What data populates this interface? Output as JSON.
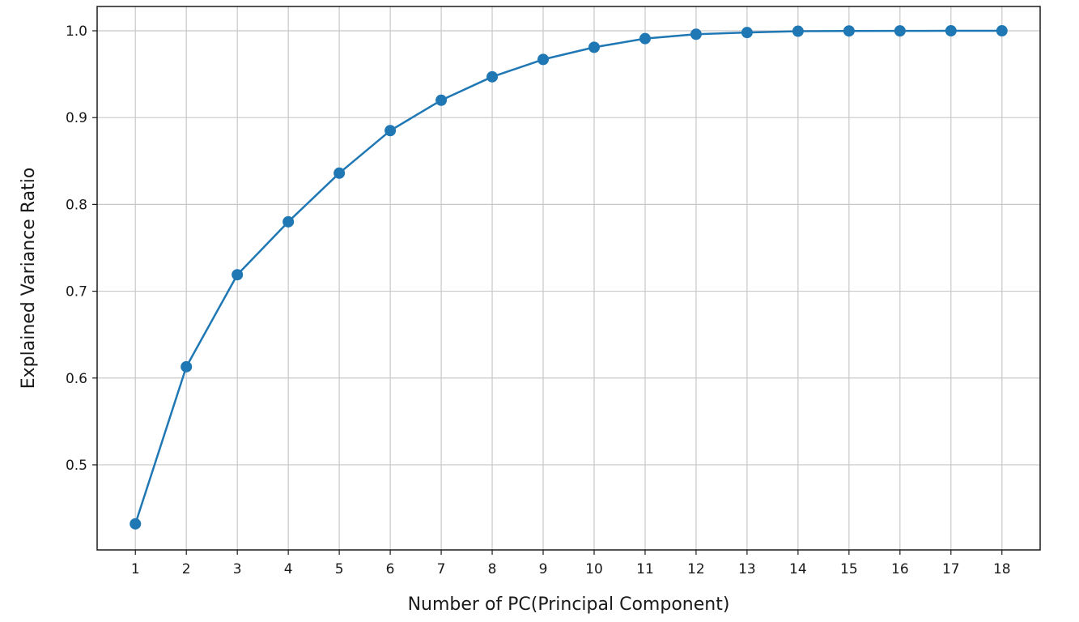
{
  "chart_data": {
    "type": "line",
    "title": "",
    "xlabel": "Number of PC(Principal Component)",
    "ylabel": "Explained Variance Ratio",
    "x": [
      1,
      2,
      3,
      4,
      5,
      6,
      7,
      8,
      9,
      10,
      11,
      12,
      13,
      14,
      15,
      16,
      17,
      18
    ],
    "xticks": [
      "1",
      "2",
      "3",
      "4",
      "5",
      "6",
      "7",
      "8",
      "9",
      "10",
      "11",
      "12",
      "13",
      "14",
      "15",
      "16",
      "17",
      "18"
    ],
    "yticks": [
      "0.5",
      "0.6",
      "0.7",
      "0.8",
      "0.9",
      "1.0"
    ],
    "ytick_values": [
      0.5,
      0.6,
      0.7,
      0.8,
      0.9,
      1.0
    ],
    "xlim": [
      0.25,
      18.75
    ],
    "ylim": [
      0.402,
      1.028
    ],
    "grid": true,
    "series": [
      {
        "values": [
          0.432,
          0.613,
          0.719,
          0.78,
          0.836,
          0.885,
          0.92,
          0.947,
          0.967,
          0.981,
          0.991,
          0.996,
          0.998,
          0.9995,
          0.9998,
          0.9999,
          1.0,
          1.0
        ],
        "color": "#1f77b4",
        "marker": "circle"
      }
    ]
  }
}
